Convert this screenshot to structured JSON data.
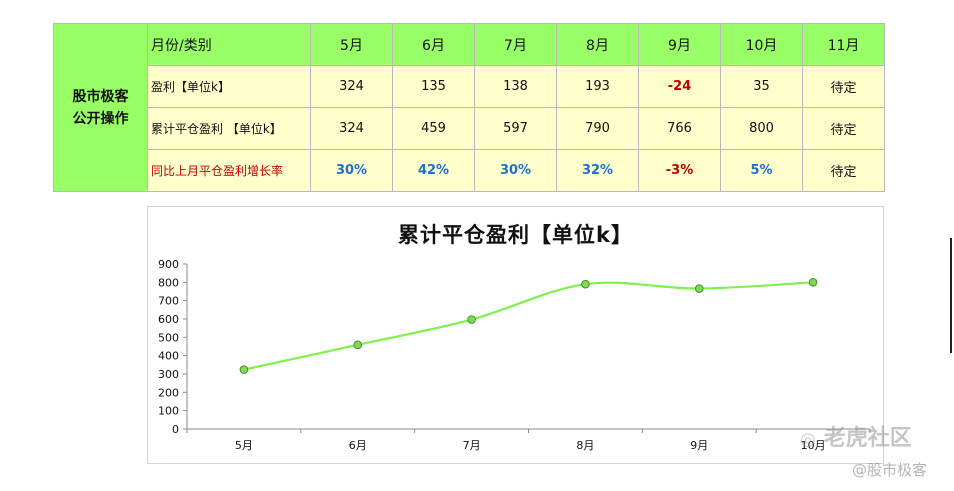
{
  "table": {
    "side_label_line1": "股市极客",
    "side_label_line2": "公开操作",
    "header_label": "月份/类别",
    "months": [
      "5月",
      "6月",
      "7月",
      "8月",
      "9月",
      "10月",
      "11月"
    ],
    "rows": [
      {
        "label": "盈利【单位k】",
        "cells": [
          "324",
          "135",
          "138",
          "193",
          "-24",
          "35",
          "待定"
        ],
        "styles": [
          "",
          "",
          "",
          "",
          "red",
          "",
          ""
        ]
      },
      {
        "label": "累计平仓盈利 【单位k】",
        "cells": [
          "324",
          "459",
          "597",
          "790",
          "766",
          "800",
          "待定"
        ],
        "styles": [
          "",
          "",
          "",
          "",
          "",
          "",
          ""
        ]
      },
      {
        "label": "同比上月平仓盈利增长率",
        "cells": [
          "30%",
          "42%",
          "30%",
          "32%",
          "-3%",
          "5%",
          "待定"
        ],
        "styles": [
          "blue",
          "blue",
          "blue",
          "blue",
          "red",
          "blue",
          ""
        ]
      }
    ]
  },
  "chart_data": {
    "type": "line",
    "title": "累计平仓盈利【单位k】",
    "categories": [
      "5月",
      "6月",
      "7月",
      "8月",
      "9月",
      "10月"
    ],
    "series": [
      {
        "values": [
          324,
          459,
          597,
          790,
          766,
          800
        ]
      }
    ],
    "ylim": [
      0,
      900
    ],
    "yticks": [
      0,
      100,
      200,
      300,
      400,
      500,
      600,
      700,
      800,
      900
    ],
    "grid": false,
    "smooth": true,
    "line_color": "#80f050",
    "marker_color": "#7ed957",
    "marker_edge": "#4a8f2a"
  },
  "watermarks": {
    "brand": "老虎社区",
    "author": "@股市极客"
  }
}
